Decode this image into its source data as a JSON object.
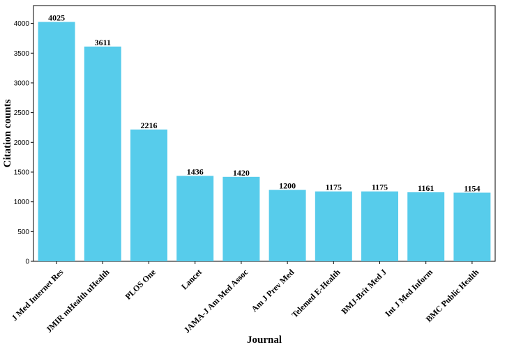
{
  "chart_data": {
    "type": "bar",
    "categories": [
      "J Med Internet Res",
      "JMIR mHealth uHealth",
      "PLOS One",
      "Lancet",
      "JAMA-J Am Med Assoc",
      "Am J Prev Med",
      "Telemed E-Health",
      "BMJ-Brit Med J",
      "Int J Med Inform",
      "BMC Public Health"
    ],
    "values": [
      4025,
      3611,
      2216,
      1436,
      1420,
      1200,
      1175,
      1175,
      1161,
      1154
    ],
    "xlabel": "Journal",
    "ylabel": "Citation counts",
    "ylim": [
      0,
      4300
    ],
    "yticks": [
      0,
      500,
      1000,
      1500,
      2000,
      2500,
      3000,
      3500,
      4000
    ],
    "bar_color": "#57cceb",
    "grid": false,
    "data_labels": true
  }
}
